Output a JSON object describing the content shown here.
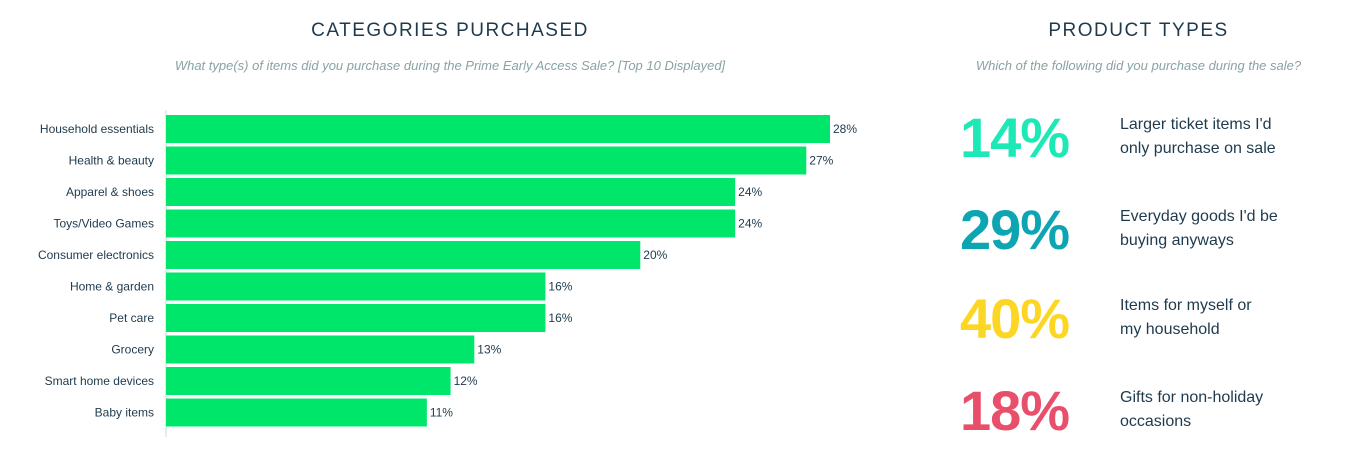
{
  "chart_data": [
    {
      "type": "bar",
      "orientation": "horizontal",
      "title": "CATEGORIES PURCHASED",
      "subtitle": "What type(s) of items did you purchase during the Prime Early Access Sale? [Top 10 Displayed]",
      "categories": [
        "Household essentials",
        "Health & beauty",
        "Apparel & shoes",
        "Toys/Video Games",
        "Consumer electronics",
        "Home & garden",
        "Pet care",
        "Grocery",
        "Smart home devices",
        "Baby items"
      ],
      "values": [
        28,
        27,
        24,
        24,
        20,
        16,
        16,
        13,
        12,
        11
      ],
      "value_suffix": "%",
      "bar_color": "#00e66b",
      "xlim": [
        0,
        35
      ]
    },
    {
      "type": "table",
      "title": "PRODUCT TYPES",
      "subtitle": "Which of the following did you purchase during the sale?",
      "items": [
        {
          "value": "14%",
          "label": "Larger ticket items I'd\nonly purchase on sale",
          "color": "#1de9b6"
        },
        {
          "value": "29%",
          "label": "Everyday goods I'd be\nbuying anyways",
          "color": "#0ea5b3"
        },
        {
          "value": "40%",
          "label": "Items for myself or\nmy household",
          "color": "#fcd622"
        },
        {
          "value": "18%",
          "label": "Gifts for non-holiday\noccasions",
          "color": "#e84f6b"
        }
      ]
    }
  ]
}
